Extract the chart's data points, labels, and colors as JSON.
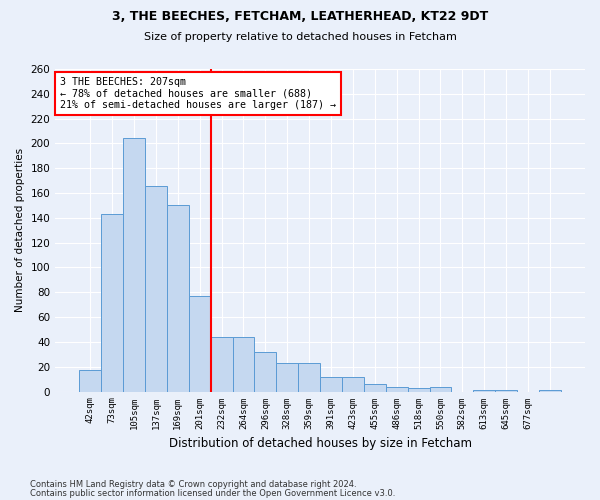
{
  "title1": "3, THE BEECHES, FETCHAM, LEATHERHEAD, KT22 9DT",
  "title2": "Size of property relative to detached houses in Fetcham",
  "xlabel": "Distribution of detached houses by size in Fetcham",
  "ylabel": "Number of detached properties",
  "footer1": "Contains HM Land Registry data © Crown copyright and database right 2024.",
  "footer2": "Contains public sector information licensed under the Open Government Licence v3.0.",
  "annotation_line1": "3 THE BEECHES: 207sqm",
  "annotation_line2": "← 78% of detached houses are smaller (688)",
  "annotation_line3": "21% of semi-detached houses are larger (187) →",
  "bar_values": [
    17,
    143,
    204,
    166,
    150,
    77,
    44,
    44,
    32,
    23,
    23,
    12,
    12,
    6,
    4,
    3,
    4,
    0,
    1,
    1,
    0,
    1
  ],
  "bin_labels": [
    "42sqm",
    "73sqm",
    "105sqm",
    "137sqm",
    "169sqm",
    "201sqm",
    "232sqm",
    "264sqm",
    "296sqm",
    "328sqm",
    "359sqm",
    "391sqm",
    "423sqm",
    "455sqm",
    "486sqm",
    "518sqm",
    "550sqm",
    "582sqm",
    "613sqm",
    "645sqm",
    "677sqm",
    ""
  ],
  "bar_color": "#c5d8f0",
  "bar_edge_color": "#5b9bd5",
  "bg_color": "#eaf0fa",
  "plot_bg_color": "#eaf0fa",
  "annotation_box_color": "white",
  "annotation_box_edge": "red",
  "vline_color": "red",
  "vline_x": 5.5,
  "ylim": [
    0,
    260
  ],
  "yticks": [
    0,
    20,
    40,
    60,
    80,
    100,
    120,
    140,
    160,
    180,
    200,
    220,
    240,
    260
  ]
}
